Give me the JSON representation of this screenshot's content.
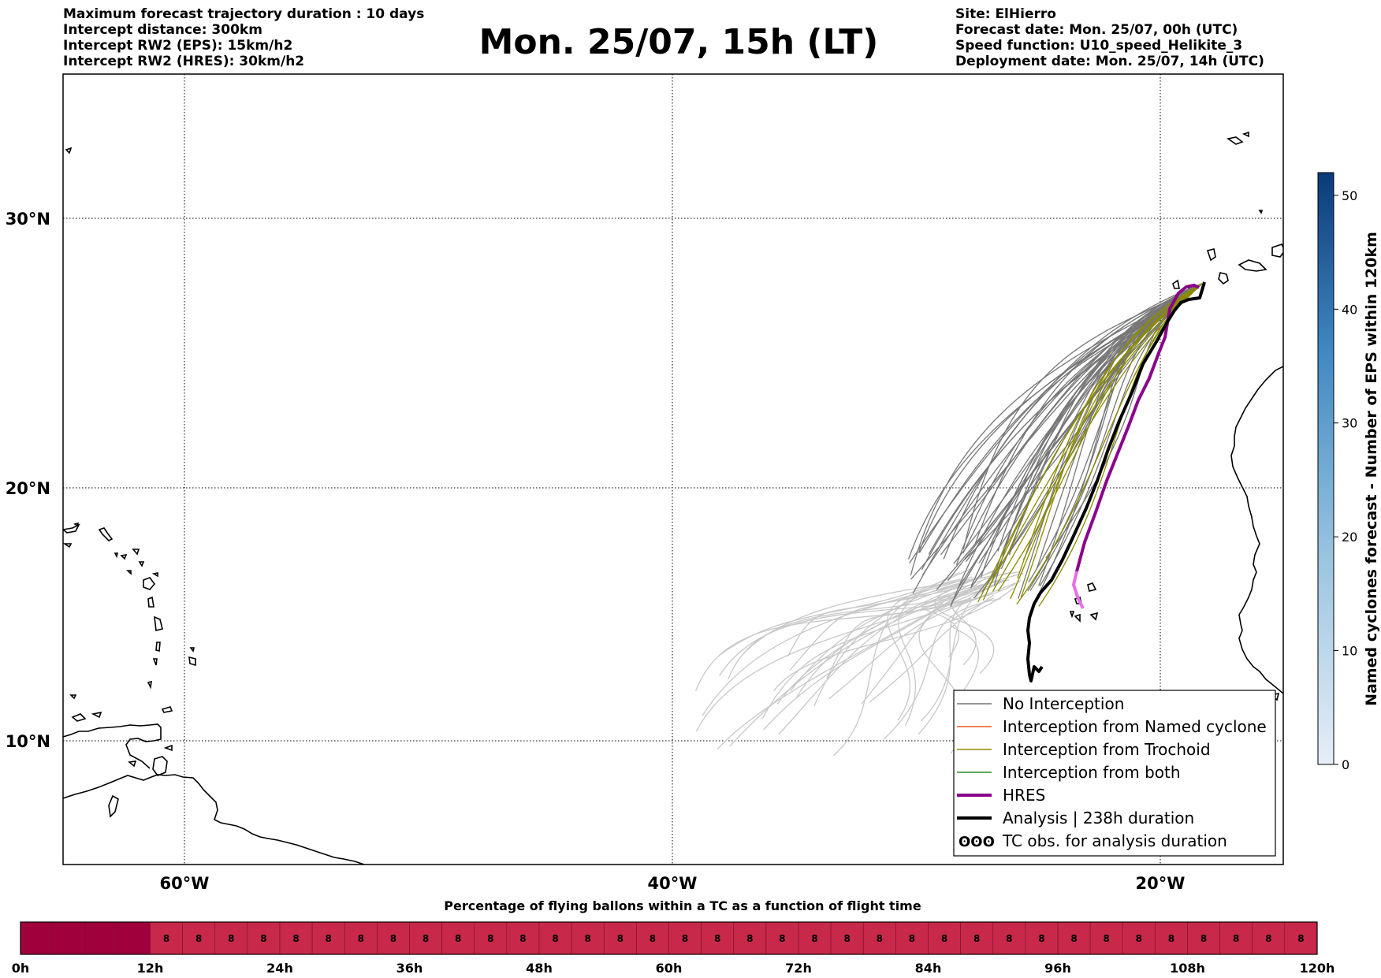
{
  "header_left": {
    "line1": "Maximum forecast trajectory duration : 10 days",
    "line2": "Intercept distance: 300km",
    "line3": "Intercept RW2 (EPS):  15km/h2",
    "line4": "Intercept RW2 (HRES): 30km/h2"
  },
  "title": "Mon. 25/07, 15h (LT)",
  "header_right": {
    "line1": "Site: ElHierro",
    "line2": "Forecast date: Mon. 25/07, 00h (UTC)",
    "line3": "Speed function: U10_speed_Helikite_3",
    "line4": "Deployment date: Mon. 25/07, 14h (UTC)"
  },
  "map": {
    "lat_labels": [
      "30°N",
      "20°N",
      "10°N"
    ],
    "lon_labels": [
      "60°W",
      "40°W",
      "20°W"
    ],
    "lon_range": [
      -65,
      -15
    ],
    "lat_range": [
      5,
      34
    ]
  },
  "legend": {
    "items": [
      {
        "label": "No Interception",
        "color": "#777777"
      },
      {
        "label": "Interception from Named cyclone",
        "color": "#e8561e"
      },
      {
        "label": "Interception from Trochoid",
        "color": "#8b8b00"
      },
      {
        "label": "Interception from both",
        "color": "#2e8b2e"
      },
      {
        "label": "HRES",
        "color": "#8b008b"
      },
      {
        "label": "Analysis | 238h duration",
        "color": "#000000"
      },
      {
        "label": "TC obs. for analysis duration",
        "color": "#000000",
        "symbol": "ʘʘʘ"
      }
    ]
  },
  "colorbar": {
    "label": "Named cyclones forecast - Number of EPS within 120km",
    "ticks": [
      "0",
      "10",
      "20",
      "30",
      "40",
      "50"
    ],
    "color_low": "#e6eef8",
    "color_high": "#0c3a78"
  },
  "timebar": {
    "title": "Percentage of flying ballons within a TC as a function of flight time",
    "ticks": [
      "0h",
      "12h",
      "24h",
      "36h",
      "48h",
      "60h",
      "72h",
      "84h",
      "96h",
      "108h",
      "120h"
    ],
    "cell_value": "8",
    "first_color": "#a0003c",
    "cell_color": "#c8284a"
  }
}
